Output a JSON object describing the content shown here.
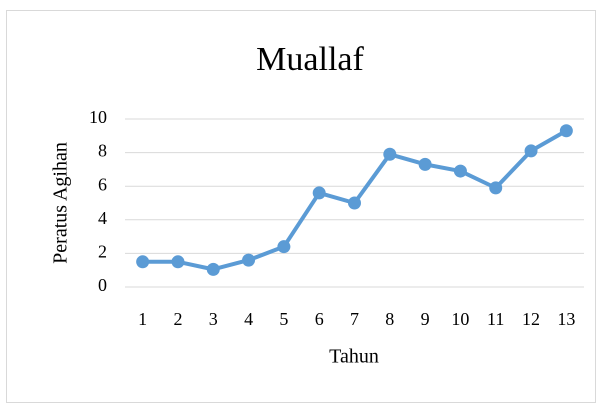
{
  "chart_data": {
    "type": "line",
    "title": "Muallaf",
    "x_label": "Tahun",
    "y_label": "Peratus Agihan",
    "categories": [
      1,
      2,
      3,
      4,
      5,
      6,
      7,
      8,
      9,
      10,
      11,
      12,
      13
    ],
    "series": [
      {
        "name": "Muallaf",
        "color": "#5b9bd5",
        "values": [
          1.5,
          1.5,
          1.05,
          1.6,
          2.4,
          5.6,
          5.0,
          7.9,
          7.3,
          6.9,
          5.9,
          8.1,
          9.3
        ]
      }
    ],
    "ylim": [
      0,
      10
    ],
    "yticks": [
      0,
      2,
      4,
      6,
      8,
      10
    ],
    "grid": true
  }
}
